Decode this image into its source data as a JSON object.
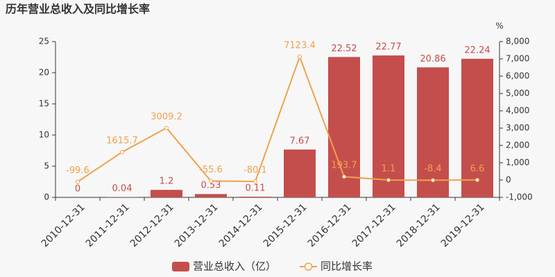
{
  "chart_data": {
    "type": "bar",
    "title": "历年营业总收入及同比增长率",
    "categories": [
      "2010-12-31",
      "2011-12-31",
      "2012-12-31",
      "2013-12-31",
      "2014-12-31",
      "2015-12-31",
      "2016-12-31",
      "2017-12-31",
      "2018-12-31",
      "2019-12-31"
    ],
    "series": [
      {
        "name": "营业总收入（亿）",
        "type": "bar",
        "color": "#c44e4c",
        "values": [
          0,
          0.04,
          1.2,
          0.53,
          0.11,
          7.67,
          22.52,
          22.77,
          20.86,
          22.24
        ]
      },
      {
        "name": "同比增长率",
        "type": "line",
        "axis": "y2",
        "color": "#f2a04d",
        "values": [
          -99.6,
          1615.7,
          3009.2,
          -55.6,
          -80.1,
          7123.4,
          193.7,
          1.1,
          -8.4,
          6.6
        ]
      }
    ],
    "ylim": [
      0,
      25
    ],
    "yticks": [
      0,
      5,
      10,
      15,
      20,
      25
    ],
    "y2label": "%",
    "y2lim": [
      -1000,
      8000
    ],
    "y2ticks": [
      {
        "value": -1000,
        "label": "-1,000"
      },
      0,
      {
        "value": 1000,
        "label": "1,000"
      },
      {
        "value": 2000,
        "label": "2,000"
      },
      {
        "value": 3000,
        "label": "3,000"
      },
      {
        "value": 4000,
        "label": "4,000"
      },
      {
        "value": 5000,
        "label": "5,000"
      },
      {
        "value": 6000,
        "label": "6,000"
      },
      {
        "value": 7000,
        "label": "7,000"
      },
      {
        "value": 8000,
        "label": "8,000"
      }
    ],
    "grid": false
  }
}
